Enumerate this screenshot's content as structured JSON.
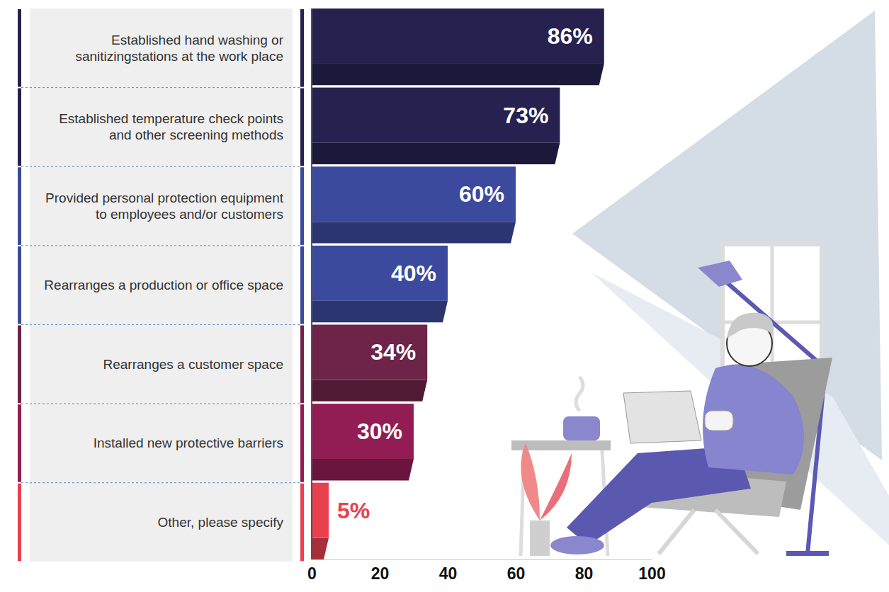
{
  "chart_data": {
    "type": "bar",
    "orientation": "horizontal",
    "categories": [
      "Established hand washing or sanitizingstations at the work place",
      "Established temperature check points and other screening methods",
      "Provided personal protection equipment to employees and/or customers",
      "Rearranges a production or office space",
      "Rearranges a customer space",
      "Installed new protective barriers",
      "Other, please specify"
    ],
    "values": [
      86,
      73,
      60,
      40,
      34,
      30,
      5
    ],
    "value_labels": [
      "86%",
      "73%",
      "60%",
      "40%",
      "34%",
      "30%",
      "5%"
    ],
    "colors": [
      "#27214f",
      "#27214f",
      "#3b4a9c",
      "#3b4a9c",
      "#6e2348",
      "#921d55",
      "#e8404f"
    ],
    "xlim": [
      0,
      100
    ],
    "xticks": [
      0,
      20,
      40,
      60,
      80,
      100
    ],
    "data_labels": true,
    "grid": false
  }
}
